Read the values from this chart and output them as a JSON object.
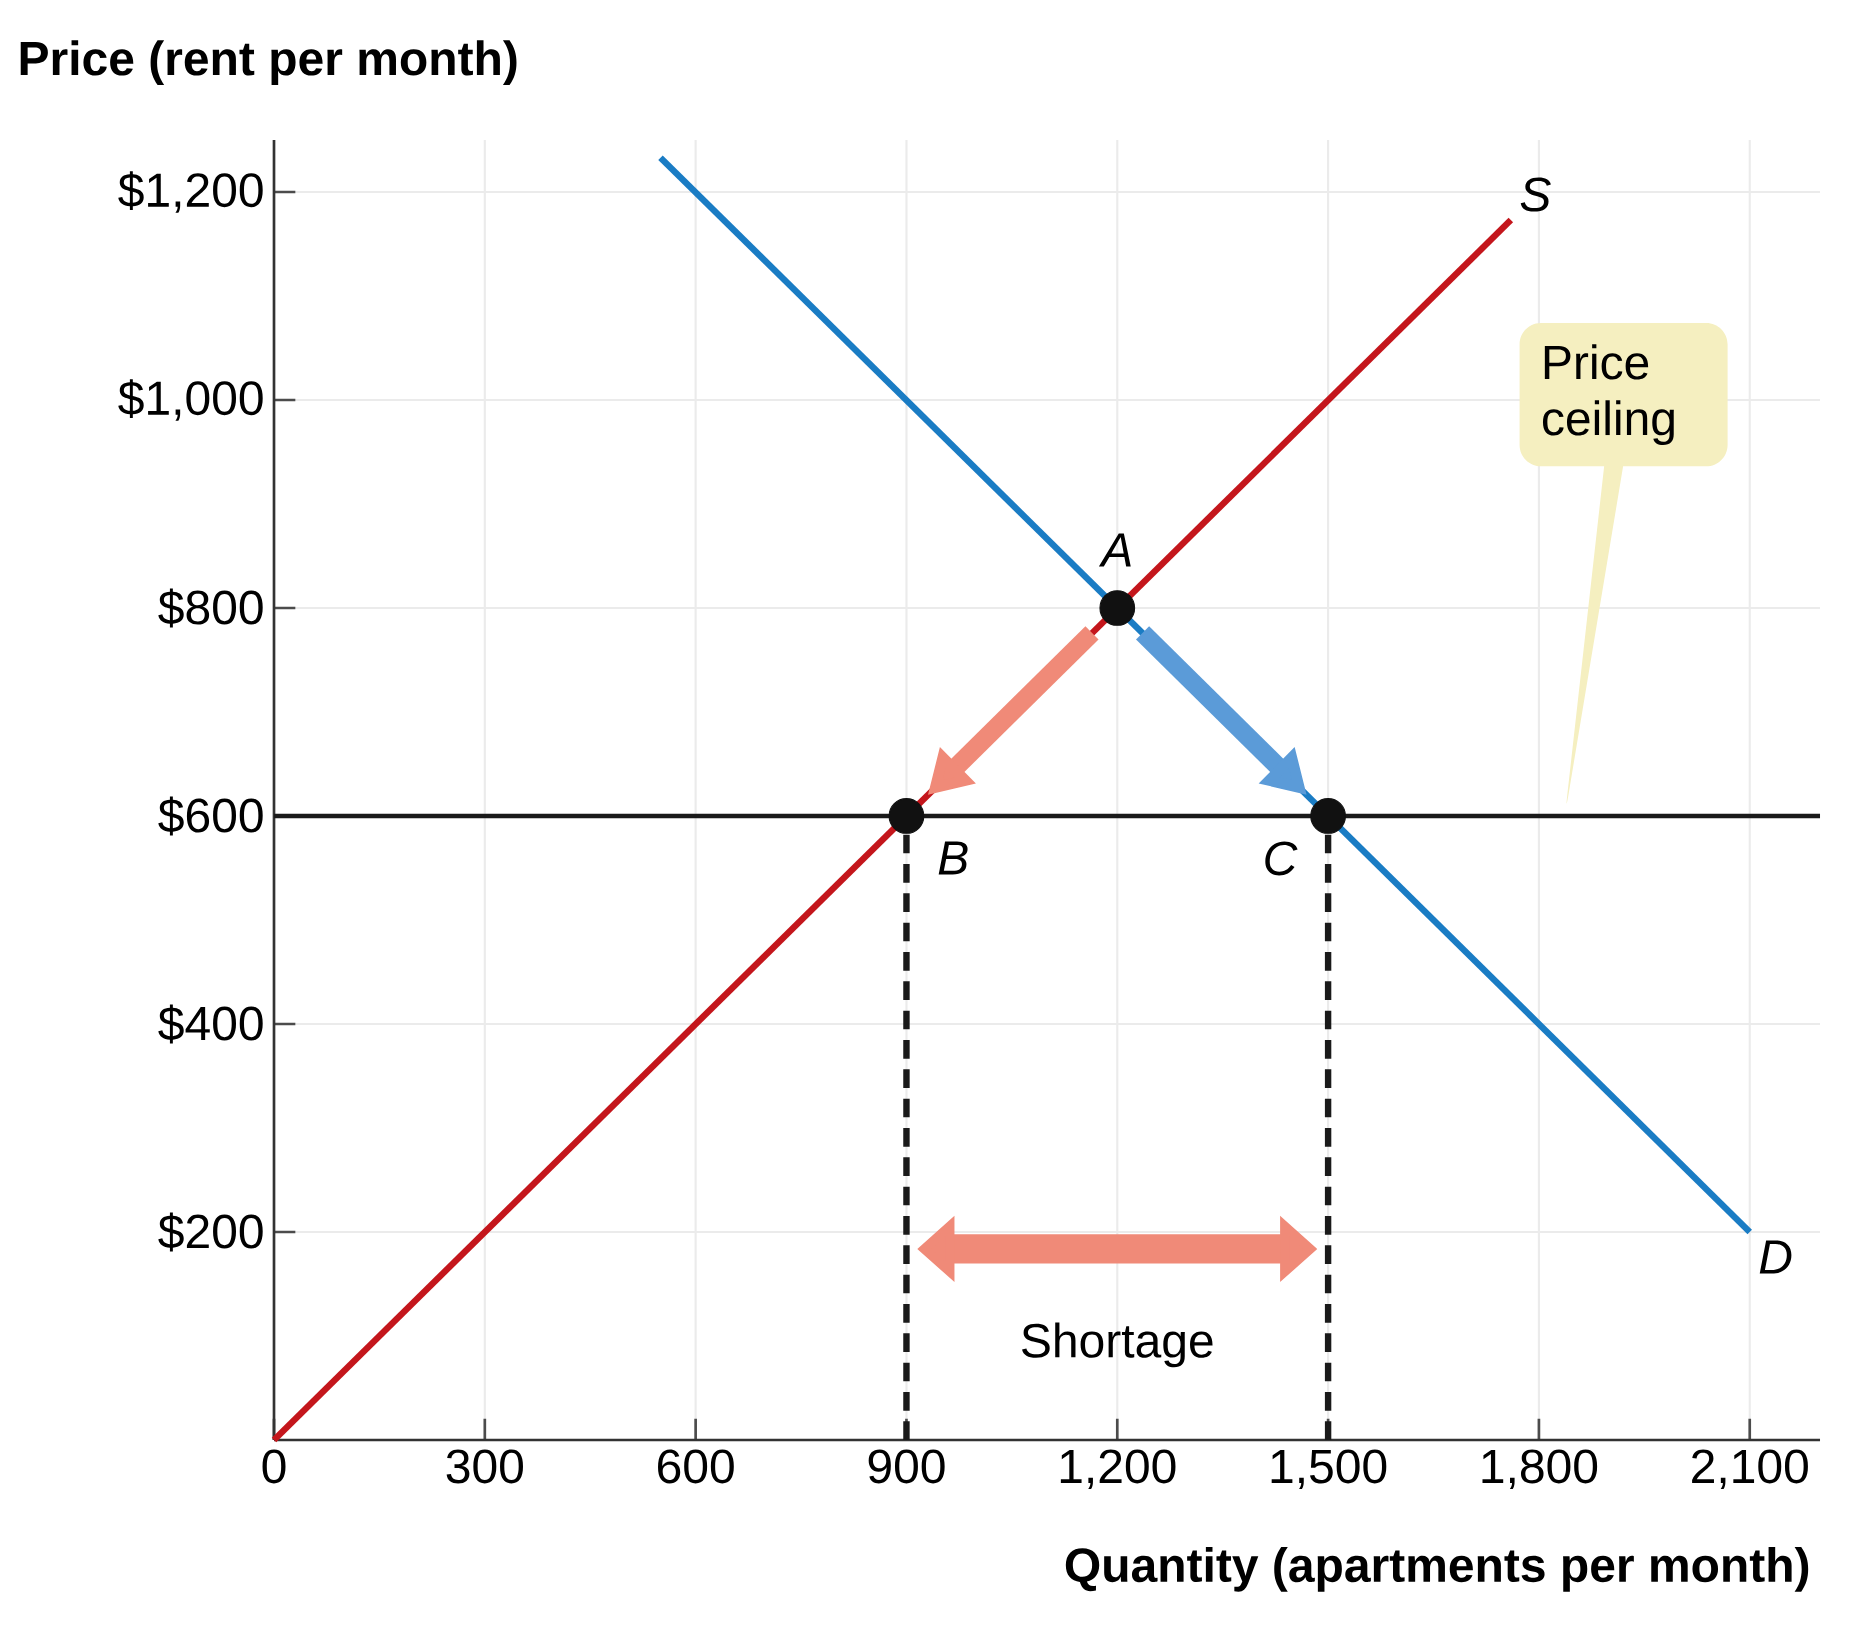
{
  "chart_data": {
    "type": "line",
    "xlabel": "Quantity (apartments per month)",
    "ylabel": "Price (rent per month)",
    "series": [
      {
        "name": "S",
        "color": "#c4161c",
        "x": [
          0,
          1760
        ],
        "values": [
          0,
          1173
        ]
      },
      {
        "name": "D",
        "color": "#1a7cc4",
        "x": [
          550,
          2100
        ],
        "values": [
          1233,
          200
        ]
      },
      {
        "color": "#1a1a1a",
        "line_style": "dashed",
        "x": [
          900,
          900
        ],
        "values": [
          0,
          600
        ]
      },
      {
        "color": "#1a1a1a",
        "line_style": "dashed",
        "x": [
          1500,
          1500
        ],
        "values": [
          0,
          600
        ]
      },
      {
        "type": "scatter",
        "color": "#111111",
        "marker": "circle",
        "x": [
          1200,
          900,
          1500
        ],
        "values": [
          800,
          600,
          600
        ]
      }
    ],
    "xlim": [
      0,
      2200
    ],
    "ylim": [
      0,
      1250
    ],
    "xticks": [
      {
        "value": 0,
        "label": "0"
      },
      300,
      600,
      900,
      {
        "value": 1200,
        "label": "1,200"
      },
      {
        "value": 1500,
        "label": "1,500"
      },
      {
        "value": 1800,
        "label": "1,800"
      },
      {
        "value": 2100,
        "label": "2,100"
      }
    ],
    "yticks": [
      {
        "value": 200,
        "label": "$200"
      },
      {
        "value": 400,
        "label": "$400"
      },
      {
        "value": 600,
        "label": "$600"
      },
      {
        "value": 800,
        "label": "$800"
      },
      {
        "value": 1000,
        "label": "$1,000"
      },
      {
        "value": 1200,
        "label": "$1,200"
      }
    ],
    "grid": true,
    "ref_lines": [
      {
        "axis": "y",
        "value": 600,
        "color": "#1a1a1a"
      }
    ],
    "annotations": [
      {
        "text": "A",
        "x": 1200,
        "y": 800
      },
      {
        "text": "B",
        "x": 900,
        "y": 600
      },
      {
        "text": "C",
        "x": 1500,
        "y": 600
      },
      "Shortage",
      "Price ceiling"
    ]
  }
}
